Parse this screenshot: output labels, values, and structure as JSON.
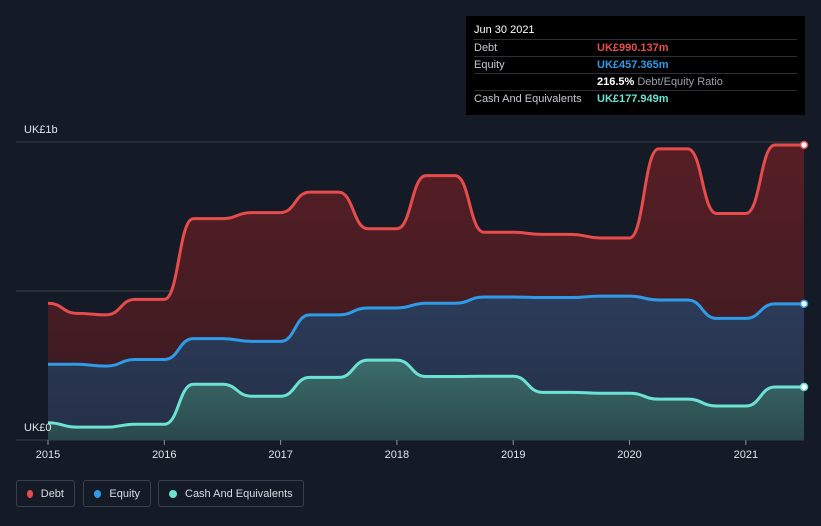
{
  "tooltip": {
    "date": "Jun 30 2021",
    "rows": [
      {
        "label": "Debt",
        "value": "UK£990.137m",
        "color": "#e64c4c"
      },
      {
        "label": "Equity",
        "value": "UK£457.365m",
        "color": "#2f9be8"
      },
      {
        "label": "",
        "value": "216.5%",
        "suffix": "Debt/Equity Ratio",
        "color": "#ffffff"
      },
      {
        "label": "Cash And Equivalents",
        "value": "UK£177.949m",
        "color": "#6be2d2"
      }
    ]
  },
  "legend": [
    {
      "label": "Debt",
      "color": "#e64c4c"
    },
    {
      "label": "Equity",
      "color": "#2f9be8"
    },
    {
      "label": "Cash And Equivalents",
      "color": "#6be2d2"
    }
  ],
  "chart_data": {
    "type": "area",
    "title": "",
    "xlabel": "",
    "ylabel": "",
    "y_units": "UK£m",
    "ylim": [
      0,
      1000
    ],
    "xlim": [
      2015.0,
      2021.5
    ],
    "y_tick_labels": [
      {
        "value": 1000,
        "label": "UK£1b"
      },
      {
        "value": 0,
        "label": "UK£0"
      }
    ],
    "x_ticks": [
      2015,
      2016,
      2017,
      2018,
      2019,
      2020,
      2021
    ],
    "x_tick_labels": [
      "2015",
      "2016",
      "2017",
      "2018",
      "2019",
      "2020",
      "2021"
    ],
    "series": [
      {
        "name": "Debt",
        "color": "#e64c4c",
        "points": [
          [
            2015.0,
            459
          ],
          [
            2015.25,
            425
          ],
          [
            2015.5,
            420
          ],
          [
            2015.75,
            472
          ],
          [
            2016.0,
            472
          ],
          [
            2016.25,
            743
          ],
          [
            2016.5,
            743
          ],
          [
            2016.75,
            763
          ],
          [
            2017.0,
            763
          ],
          [
            2017.25,
            832
          ],
          [
            2017.5,
            832
          ],
          [
            2017.75,
            709
          ],
          [
            2018.0,
            709
          ],
          [
            2018.25,
            887
          ],
          [
            2018.5,
            887
          ],
          [
            2018.75,
            697
          ],
          [
            2019.0,
            697
          ],
          [
            2019.25,
            690
          ],
          [
            2019.5,
            690
          ],
          [
            2019.75,
            678
          ],
          [
            2020.0,
            678
          ],
          [
            2020.25,
            977
          ],
          [
            2020.5,
            977
          ],
          [
            2020.75,
            760
          ],
          [
            2021.0,
            760
          ],
          [
            2021.25,
            990
          ],
          [
            2021.5,
            990
          ]
        ]
      },
      {
        "name": "Equity",
        "color": "#2f9be8",
        "points": [
          [
            2015.0,
            254
          ],
          [
            2015.25,
            254
          ],
          [
            2015.5,
            248
          ],
          [
            2015.75,
            270
          ],
          [
            2016.0,
            270
          ],
          [
            2016.25,
            340
          ],
          [
            2016.5,
            340
          ],
          [
            2016.75,
            331
          ],
          [
            2017.0,
            331
          ],
          [
            2017.25,
            420
          ],
          [
            2017.5,
            420
          ],
          [
            2017.75,
            443
          ],
          [
            2018.0,
            443
          ],
          [
            2018.25,
            459
          ],
          [
            2018.5,
            459
          ],
          [
            2018.75,
            480
          ],
          [
            2019.0,
            480
          ],
          [
            2019.25,
            478
          ],
          [
            2019.5,
            478
          ],
          [
            2019.75,
            483
          ],
          [
            2020.0,
            483
          ],
          [
            2020.25,
            470
          ],
          [
            2020.5,
            470
          ],
          [
            2020.75,
            408
          ],
          [
            2021.0,
            408
          ],
          [
            2021.25,
            457
          ],
          [
            2021.5,
            457
          ]
        ]
      },
      {
        "name": "Cash And Equivalents",
        "color": "#6be2d2",
        "points": [
          [
            2015.0,
            58
          ],
          [
            2015.25,
            43
          ],
          [
            2015.5,
            43
          ],
          [
            2015.75,
            53
          ],
          [
            2016.0,
            53
          ],
          [
            2016.25,
            187
          ],
          [
            2016.5,
            187
          ],
          [
            2016.75,
            147
          ],
          [
            2017.0,
            147
          ],
          [
            2017.25,
            210
          ],
          [
            2017.5,
            210
          ],
          [
            2017.75,
            268
          ],
          [
            2018.0,
            268
          ],
          [
            2018.25,
            213
          ],
          [
            2018.5,
            213
          ],
          [
            2018.75,
            214
          ],
          [
            2019.0,
            214
          ],
          [
            2019.25,
            160
          ],
          [
            2019.5,
            160
          ],
          [
            2019.75,
            157
          ],
          [
            2020.0,
            157
          ],
          [
            2020.25,
            137
          ],
          [
            2020.5,
            137
          ],
          [
            2020.75,
            114
          ],
          [
            2021.0,
            114
          ],
          [
            2021.25,
            178
          ],
          [
            2021.5,
            178
          ]
        ]
      }
    ]
  }
}
